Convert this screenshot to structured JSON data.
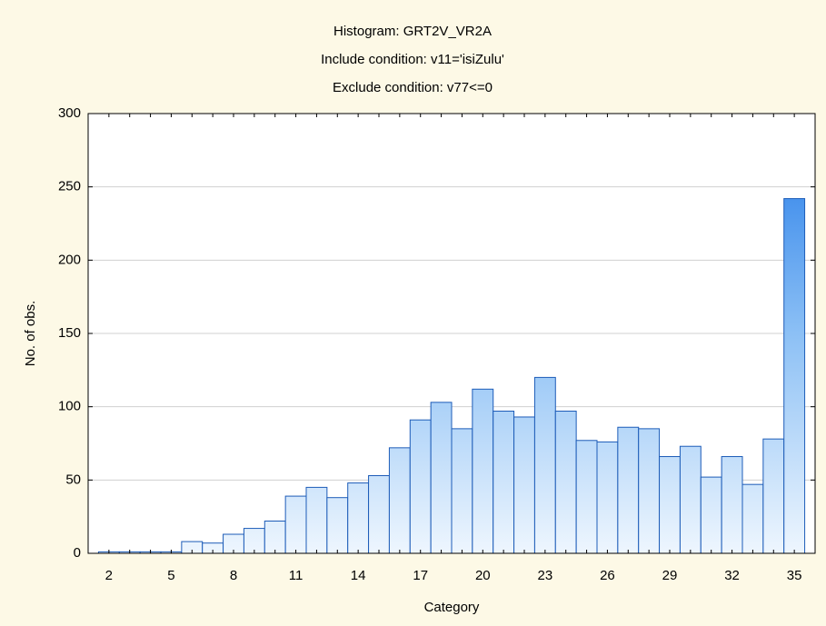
{
  "chart_data": {
    "type": "bar",
    "title": "Histogram: GRT2V_VR2A",
    "subtitles": [
      "Include condition: v11='isiZulu'",
      "Exclude condition: v77<=0"
    ],
    "xlabel": "Category",
    "ylabel": "No. of obs.",
    "categories": [
      2,
      null,
      null,
      5,
      null,
      null,
      8,
      null,
      null,
      11,
      null,
      null,
      14,
      null,
      null,
      17,
      null,
      null,
      20,
      null,
      null,
      23,
      null,
      null,
      26,
      null,
      null,
      29,
      null,
      null,
      32,
      null,
      null,
      35
    ],
    "values": [
      1,
      1,
      1,
      1,
      8,
      7,
      13,
      17,
      22,
      39,
      45,
      38,
      48,
      53,
      72,
      91,
      103,
      85,
      112,
      97,
      93,
      120,
      97,
      77,
      76,
      86,
      85,
      66,
      73,
      52,
      66,
      47,
      78,
      242
    ],
    "color": "#2a7fe6",
    "ylim": [
      0,
      300
    ],
    "yticks": [
      0,
      50,
      100,
      150,
      200,
      250,
      300
    ],
    "grid": true
  }
}
